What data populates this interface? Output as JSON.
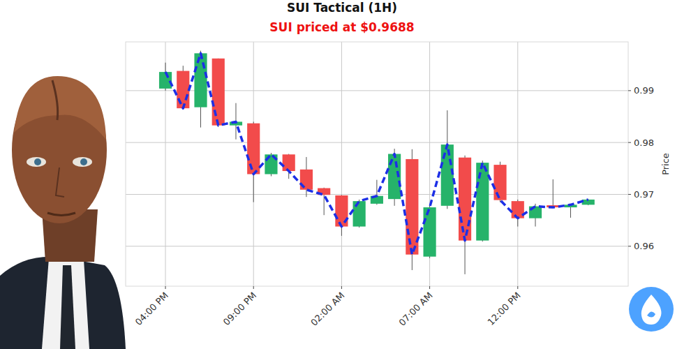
{
  "chart_data": {
    "type": "candlestick",
    "title": "SUI Tactical (1H)",
    "subtitle": "SUI priced at $0.9688",
    "y_label": "Price",
    "categories": [
      "04:00 PM",
      null,
      null,
      null,
      null,
      "09:00 PM",
      null,
      null,
      null,
      null,
      "02:00 AM",
      null,
      null,
      null,
      null,
      "07:00 AM",
      null,
      null,
      null,
      null,
      "12:00 PM",
      null,
      null,
      null,
      null
    ],
    "open": [
      0.9904,
      0.9938,
      0.9868,
      0.9962,
      0.9833,
      0.9837,
      0.9739,
      0.9777,
      0.9748,
      0.9712,
      0.9698,
      0.9638,
      0.9682,
      0.9691,
      0.9768,
      0.958,
      0.9678,
      0.9771,
      0.9611,
      0.9757,
      0.9687,
      0.9654,
      0.9679,
      0.9675,
      0.968
    ],
    "high": [
      0.9954,
      0.9948,
      0.9977,
      0.9962,
      0.9876,
      0.984,
      0.978,
      0.9778,
      0.9772,
      0.9713,
      0.9699,
      0.969,
      0.9728,
      0.9788,
      0.9787,
      0.968,
      0.9862,
      0.9775,
      0.9765,
      0.9763,
      0.969,
      0.9682,
      0.9729,
      0.9681,
      0.9691
    ],
    "low": [
      0.99,
      0.9865,
      0.9829,
      0.983,
      0.9806,
      0.9685,
      0.9735,
      0.973,
      0.9695,
      0.966,
      0.962,
      0.9636,
      0.968,
      0.9678,
      0.9554,
      0.9577,
      0.9672,
      0.9546,
      0.9609,
      0.9685,
      0.9638,
      0.9638,
      0.9674,
      0.9655,
      0.9679
    ],
    "close": [
      0.9936,
      0.9866,
      0.9972,
      0.9833,
      0.984,
      0.9739,
      0.9777,
      0.9745,
      0.9709,
      0.9699,
      0.9638,
      0.9687,
      0.9697,
      0.9778,
      0.9584,
      0.9675,
      0.9796,
      0.9611,
      0.9761,
      0.9689,
      0.9654,
      0.9677,
      0.9675,
      0.968,
      0.969
    ],
    "colors": [
      "#26b36a",
      "#f24b4b",
      "#26b36a",
      "#f24b4b",
      "#26b36a",
      "#f24b4b",
      "#26b36a",
      "#f24b4b",
      "#f24b4b",
      "#f24b4b",
      "#f24b4b",
      "#26b36a",
      "#26b36a",
      "#26b36a",
      "#f24b4b",
      "#26b36a",
      "#26b36a",
      "#f24b4b",
      "#26b36a",
      "#f24b4b",
      "#f24b4b",
      "#26b36a",
      "#f24b4b",
      "#26b36a",
      "#26b36a"
    ],
    "color": "#1c2fe6",
    "line_style": "dashed",
    "xlim": [
      -2.26,
      26.27
    ],
    "ylim": [
      0.9523,
      0.9994
    ],
    "yticks": [
      0.96,
      0.97,
      0.98,
      0.99
    ],
    "grid": true
  }
}
